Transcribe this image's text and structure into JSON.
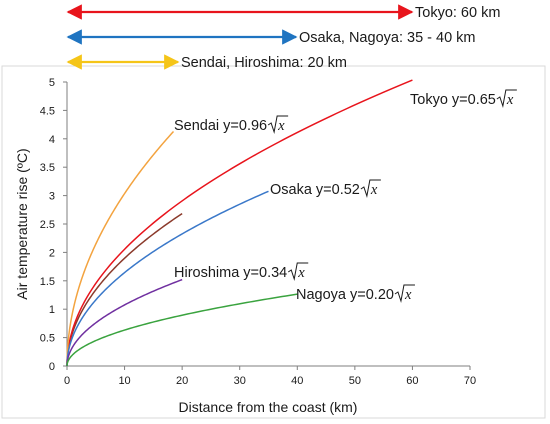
{
  "chart_data": {
    "type": "line",
    "xlabel": "Distance from the coast (km)",
    "ylabel": "Air temperature rise (ºC)",
    "xlim": [
      0,
      70
    ],
    "ylim": [
      0,
      5
    ],
    "x_ticks": [
      "0",
      "10",
      "20",
      "30",
      "40",
      "50",
      "60",
      "70"
    ],
    "y_ticks": [
      "0",
      "0.5",
      "1",
      "1.5",
      "2",
      "2.5",
      "3",
      "3.5",
      "4",
      "4.5",
      "5"
    ],
    "grid": "none",
    "series": [
      {
        "name": "Tokyo",
        "formula": "y=0.65√x",
        "coef": 0.65,
        "x_max": 60,
        "color": "#e8141c",
        "label": {
          "prefix": "Tokyo y=0.65",
          "var": "x"
        }
      },
      {
        "name": "Sendai",
        "formula": "y=0.96√x",
        "coef": 0.96,
        "x_max": 18.5,
        "color": "#f3a33f",
        "label": {
          "prefix": "Sendai y=0.96",
          "var": "x"
        }
      },
      {
        "name": "Osaka",
        "formula": "y=0.52√x",
        "coef": 0.52,
        "x_max": 35,
        "color": "#3a78c9",
        "label": {
          "prefix": "Osaka y=0.52",
          "var": "x"
        }
      },
      {
        "name": "Hiroshima",
        "formula": "y=0.34√x",
        "coef": 0.34,
        "x_max": 20,
        "color": "#7030a0",
        "label": {
          "prefix": "Hiroshima y=0.34",
          "var": "x"
        }
      },
      {
        "name": "Nagoya",
        "formula": "y=0.20√x",
        "coef": 0.2,
        "x_max": 40,
        "color": "#3aa33f",
        "label": {
          "prefix": "Nagoya y=0.20",
          "var": "x"
        }
      }
    ],
    "extra_series": [
      {
        "coef": 0.6,
        "x_max": 20,
        "color": "#8b3a2b"
      }
    ],
    "range_annotations": [
      {
        "text": "Tokyo: 60 km",
        "km": 60,
        "color": "#e8141c"
      },
      {
        "text": "Osaka, Nagoya: 35 - 40 km",
        "km": 40,
        "color": "#1f74c1"
      },
      {
        "text": "Sendai, Hiroshima: 20 km",
        "km": 20,
        "color": "#f5c518"
      }
    ]
  }
}
